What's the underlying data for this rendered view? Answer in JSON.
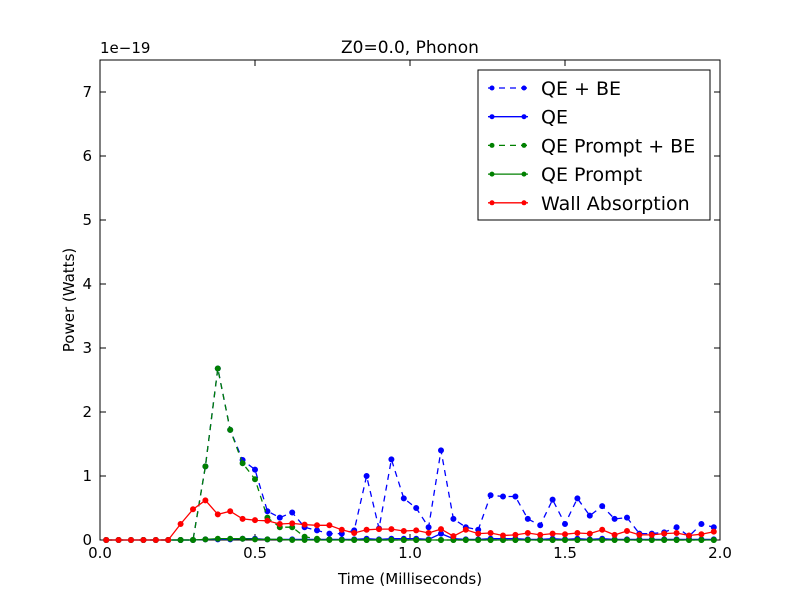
{
  "chart_data": {
    "type": "line",
    "title": "Z0=0.0, Phonon",
    "xlabel": "Time (Milliseconds)",
    "ylabel": "Power (Watts)",
    "y_exponent_label": "1e−19",
    "xlim": [
      0.0,
      2.0
    ],
    "ylim": [
      0,
      7.5
    ],
    "x_ticks": [
      0.0,
      0.5,
      1.0,
      1.5,
      2.0
    ],
    "x_tick_labels": [
      "0.0",
      "0.5",
      "1.0",
      "1.5",
      "2.0"
    ],
    "y_ticks": [
      0,
      1,
      2,
      3,
      4,
      5,
      6,
      7
    ],
    "y_tick_labels": [
      "0",
      "1",
      "2",
      "3",
      "4",
      "5",
      "6",
      "7"
    ],
    "grid": false,
    "legend_position": "top-right",
    "x": [
      0.02,
      0.06,
      0.1,
      0.14,
      0.18,
      0.22,
      0.26,
      0.3,
      0.34,
      0.38,
      0.42,
      0.46,
      0.5,
      0.54,
      0.58,
      0.62,
      0.66,
      0.7,
      0.74,
      0.78,
      0.82,
      0.86,
      0.9,
      0.94,
      0.98,
      1.02,
      1.06,
      1.1,
      1.14,
      1.18,
      1.22,
      1.26,
      1.3,
      1.34,
      1.38,
      1.42,
      1.46,
      1.5,
      1.54,
      1.58,
      1.62,
      1.66,
      1.7,
      1.74,
      1.78,
      1.82,
      1.86,
      1.9,
      1.94,
      1.98
    ],
    "series": [
      {
        "name": "QE + BE",
        "color": "#0000ff",
        "style": "dashed",
        "values": [
          0,
          0,
          0,
          0,
          0,
          0,
          0,
          0,
          1.15,
          2.68,
          1.72,
          1.25,
          1.1,
          0.45,
          0.35,
          0.43,
          0.2,
          0.15,
          0.1,
          0.1,
          0.15,
          1.0,
          0.18,
          1.26,
          0.65,
          0.5,
          0.2,
          1.4,
          0.33,
          0.2,
          0.16,
          0.7,
          0.68,
          0.68,
          0.33,
          0.23,
          0.63,
          0.25,
          0.65,
          0.38,
          0.53,
          0.33,
          0.35,
          0.1,
          0.1,
          0.12,
          0.2,
          0.06,
          0.25,
          0.2
        ]
      },
      {
        "name": "QE",
        "color": "#0000ff",
        "style": "solid",
        "values": [
          0,
          0,
          0,
          0,
          0,
          0,
          0,
          0,
          0.01,
          0.01,
          0.01,
          0.02,
          0.02,
          0.01,
          0.01,
          0.01,
          0.01,
          0.01,
          0.01,
          0.01,
          0.01,
          0.02,
          0.01,
          0.02,
          0.02,
          0.02,
          0.01,
          0.1,
          0.02,
          0.01,
          0.01,
          0.02,
          0.02,
          0.02,
          0.01,
          0.01,
          0.02,
          0.01,
          0.02,
          0.01,
          0.02,
          0.01,
          0.01,
          0.01,
          0.01,
          0.01,
          0.01,
          0.01,
          0.01,
          0.01
        ]
      },
      {
        "name": "QE Prompt + BE",
        "color": "#008000",
        "style": "dashed",
        "values": [
          0,
          0,
          0,
          0,
          0,
          0,
          0,
          0,
          1.15,
          2.68,
          1.72,
          1.2,
          0.95,
          0.35,
          0.2,
          0.2,
          0.05,
          0.02,
          0.01,
          0,
          0,
          0,
          0,
          0,
          0,
          0,
          0,
          0,
          0,
          0,
          0,
          0,
          0,
          0,
          0,
          0,
          0,
          0,
          0,
          0,
          0,
          0,
          0,
          0,
          0,
          0,
          0,
          0,
          0,
          0
        ]
      },
      {
        "name": "QE Prompt",
        "color": "#008000",
        "style": "solid",
        "values": [
          0,
          0,
          0,
          0,
          0,
          0,
          0,
          0,
          0.01,
          0.02,
          0.02,
          0.02,
          0.01,
          0.01,
          0.01,
          0,
          0,
          0,
          0,
          0,
          0,
          0,
          0,
          0,
          0,
          0,
          0,
          0,
          0,
          0,
          0,
          0,
          0,
          0,
          0,
          0,
          0,
          0,
          0,
          0,
          0,
          0,
          0,
          0,
          0,
          0,
          0,
          0,
          0,
          0
        ]
      },
      {
        "name": "Wall Absorption",
        "color": "#ff0000",
        "style": "solid",
        "values": [
          0,
          0,
          0,
          0,
          0,
          0,
          0.25,
          0.48,
          0.62,
          0.4,
          0.45,
          0.33,
          0.31,
          0.3,
          0.25,
          0.26,
          0.24,
          0.23,
          0.23,
          0.16,
          0.11,
          0.16,
          0.17,
          0.17,
          0.14,
          0.15,
          0.11,
          0.17,
          0.06,
          0.16,
          0.1,
          0.11,
          0.07,
          0.08,
          0.11,
          0.08,
          0.1,
          0.09,
          0.11,
          0.1,
          0.16,
          0.08,
          0.14,
          0.08,
          0.08,
          0.1,
          0.11,
          0.07,
          0.09,
          0.13
        ]
      }
    ]
  }
}
